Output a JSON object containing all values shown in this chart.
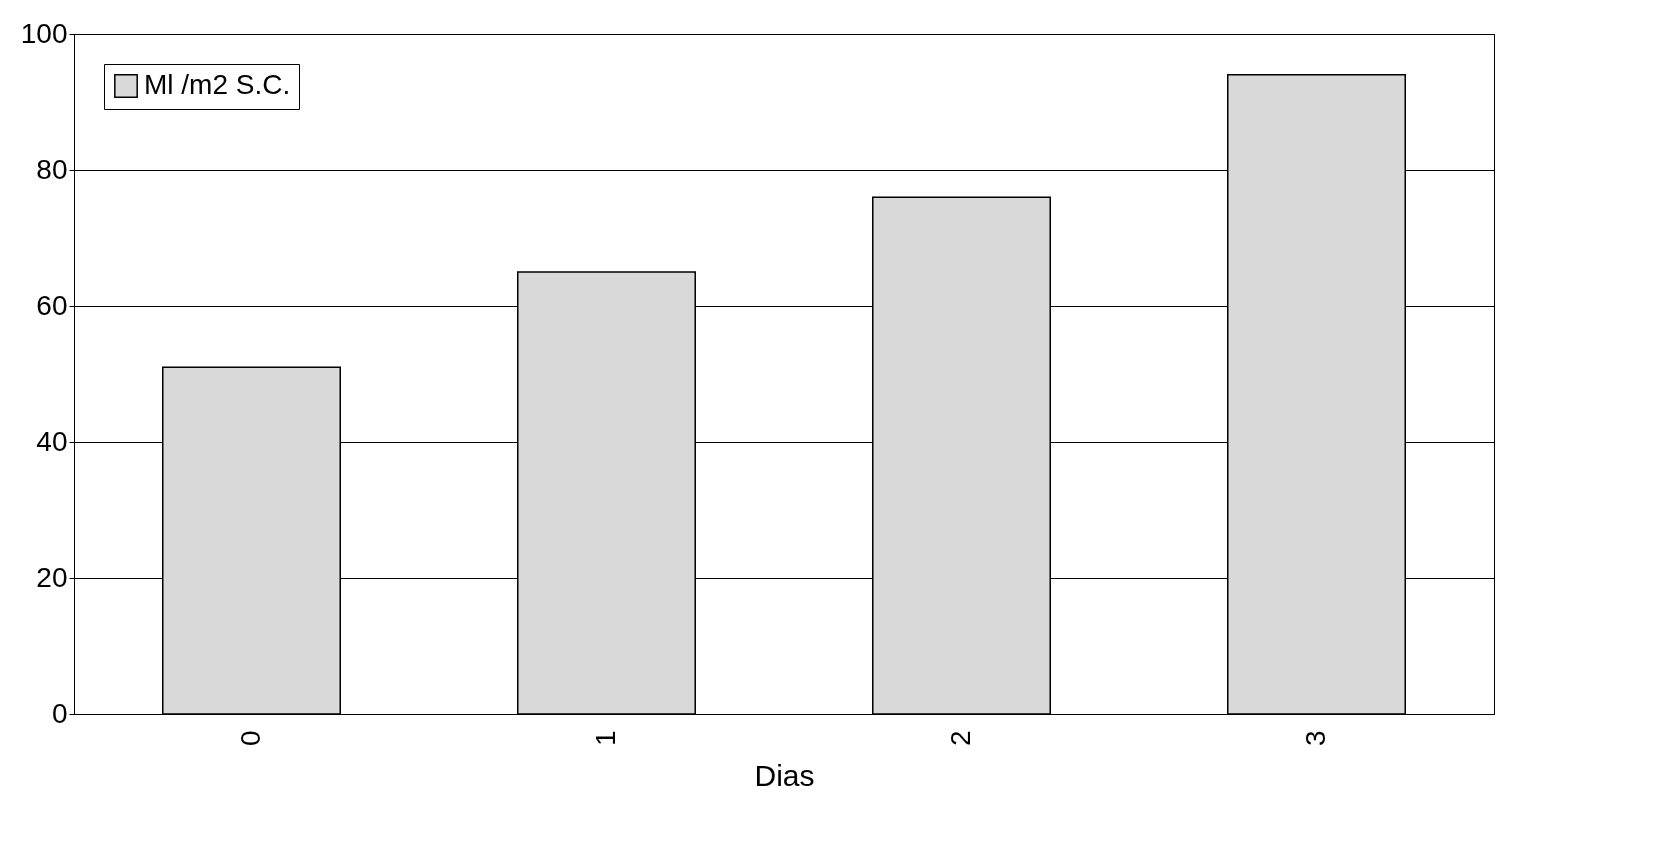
{
  "chart_data": {
    "type": "bar",
    "xlabel": "Dias",
    "categories": [
      "0",
      "1",
      "2",
      "3"
    ],
    "series": [
      {
        "name": "Ml /m2 S.C.",
        "color": "#d9d9d9",
        "values": [
          51,
          65,
          76,
          94
        ]
      }
    ],
    "ylim": [
      0,
      100
    ],
    "yticks": [
      0,
      20,
      40,
      60,
      80,
      100
    ],
    "grid": "y",
    "legend": "top left"
  }
}
